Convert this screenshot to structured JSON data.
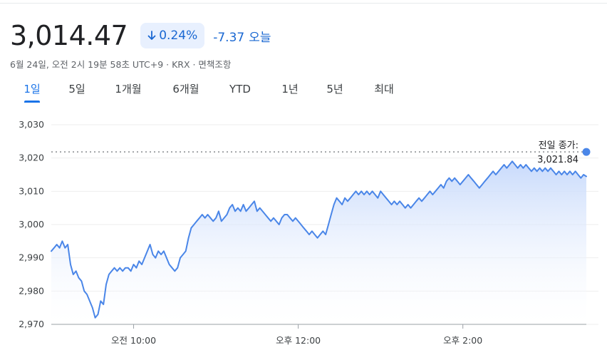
{
  "header": {
    "price": "3,014.47",
    "change_pct": "0.24%",
    "change_abs": "-7.37",
    "period_label": "오늘",
    "meta": "6월 24일, 오전 2시 19분 58초 UTC+9 · KRX · 면책조항"
  },
  "tabs": [
    {
      "label": "1일",
      "active": true
    },
    {
      "label": "5일",
      "active": false
    },
    {
      "label": "1개월",
      "active": false
    },
    {
      "label": "6개월",
      "active": false
    },
    {
      "label": "YTD",
      "active": false
    },
    {
      "label": "1년",
      "active": false
    },
    {
      "label": "5년",
      "active": false
    },
    {
      "label": "최대",
      "active": false
    }
  ],
  "colors": {
    "line": "#4a86e8",
    "fill_top": "#c5d8fb",
    "accent": "#1a73e8",
    "down": "#1967d2"
  },
  "icons": {
    "change_direction": "arrow-down-icon"
  },
  "chart_data": {
    "type": "area",
    "ylim": [
      2970,
      3030
    ],
    "y_ticks": [
      2970,
      2980,
      2990,
      3000,
      3010,
      3020,
      3030
    ],
    "y_tick_labels": [
      "2,970",
      "2,980",
      "2,990",
      "3,000",
      "3,010",
      "3,020",
      "3,030"
    ],
    "x_range": [
      "09:00",
      "15:30"
    ],
    "x_ticks": [
      {
        "time": "10:00",
        "label": "오전 10:00"
      },
      {
        "time": "12:00",
        "label": "오후 12:00"
      },
      {
        "time": "14:00",
        "label": "오후 2:00"
      }
    ],
    "previous_close": {
      "value": 3021.84,
      "label": "전일 종가:",
      "value_label": "3,021.84"
    },
    "series": [
      {
        "points": [
          [
            "09:00",
            2992
          ],
          [
            "09:02",
            2993
          ],
          [
            "09:04",
            2994
          ],
          [
            "09:06",
            2993
          ],
          [
            "09:08",
            2995
          ],
          [
            "09:10",
            2993
          ],
          [
            "09:12",
            2994
          ],
          [
            "09:14",
            2988
          ],
          [
            "09:16",
            2985
          ],
          [
            "09:18",
            2986
          ],
          [
            "09:20",
            2984
          ],
          [
            "09:22",
            2983
          ],
          [
            "09:24",
            2980
          ],
          [
            "09:26",
            2979
          ],
          [
            "09:28",
            2977
          ],
          [
            "09:30",
            2975
          ],
          [
            "09:32",
            2972
          ],
          [
            "09:34",
            2973
          ],
          [
            "09:36",
            2977
          ],
          [
            "09:38",
            2976
          ],
          [
            "09:40",
            2982
          ],
          [
            "09:42",
            2985
          ],
          [
            "09:44",
            2986
          ],
          [
            "09:46",
            2987
          ],
          [
            "09:48",
            2986
          ],
          [
            "09:50",
            2987
          ],
          [
            "09:52",
            2986
          ],
          [
            "09:54",
            2987
          ],
          [
            "09:56",
            2987
          ],
          [
            "09:58",
            2986
          ],
          [
            "10:00",
            2988
          ],
          [
            "10:02",
            2987
          ],
          [
            "10:04",
            2989
          ],
          [
            "10:06",
            2988
          ],
          [
            "10:08",
            2990
          ],
          [
            "10:10",
            2992
          ],
          [
            "10:12",
            2994
          ],
          [
            "10:14",
            2991
          ],
          [
            "10:16",
            2990
          ],
          [
            "10:18",
            2992
          ],
          [
            "10:20",
            2991
          ],
          [
            "10:22",
            2992
          ],
          [
            "10:24",
            2990
          ],
          [
            "10:26",
            2988
          ],
          [
            "10:28",
            2987
          ],
          [
            "10:30",
            2986
          ],
          [
            "10:32",
            2987
          ],
          [
            "10:34",
            2990
          ],
          [
            "10:36",
            2991
          ],
          [
            "10:38",
            2992
          ],
          [
            "10:40",
            2996
          ],
          [
            "10:42",
            2999
          ],
          [
            "10:44",
            3000
          ],
          [
            "10:46",
            3001
          ],
          [
            "10:48",
            3002
          ],
          [
            "10:50",
            3003
          ],
          [
            "10:52",
            3002
          ],
          [
            "10:54",
            3003
          ],
          [
            "10:56",
            3002
          ],
          [
            "10:58",
            3001
          ],
          [
            "11:00",
            3002
          ],
          [
            "11:02",
            3004
          ],
          [
            "11:04",
            3001
          ],
          [
            "11:06",
            3002
          ],
          [
            "11:08",
            3003
          ],
          [
            "11:10",
            3005
          ],
          [
            "11:12",
            3006
          ],
          [
            "11:14",
            3004
          ],
          [
            "11:16",
            3005
          ],
          [
            "11:18",
            3004
          ],
          [
            "11:20",
            3006
          ],
          [
            "11:22",
            3004
          ],
          [
            "11:24",
            3005
          ],
          [
            "11:26",
            3006
          ],
          [
            "11:28",
            3007
          ],
          [
            "11:30",
            3004
          ],
          [
            "11:32",
            3005
          ],
          [
            "11:34",
            3004
          ],
          [
            "11:36",
            3003
          ],
          [
            "11:38",
            3002
          ],
          [
            "11:40",
            3001
          ],
          [
            "11:42",
            3002
          ],
          [
            "11:44",
            3001
          ],
          [
            "11:46",
            3000
          ],
          [
            "11:48",
            3002
          ],
          [
            "11:50",
            3003
          ],
          [
            "11:52",
            3003
          ],
          [
            "11:54",
            3002
          ],
          [
            "11:56",
            3001
          ],
          [
            "11:58",
            3002
          ],
          [
            "12:00",
            3001
          ],
          [
            "12:02",
            3000
          ],
          [
            "12:04",
            2999
          ],
          [
            "12:06",
            2998
          ],
          [
            "12:08",
            2997
          ],
          [
            "12:10",
            2998
          ],
          [
            "12:12",
            2997
          ],
          [
            "12:14",
            2996
          ],
          [
            "12:16",
            2997
          ],
          [
            "12:18",
            2998
          ],
          [
            "12:20",
            2997
          ],
          [
            "12:22",
            3000
          ],
          [
            "12:24",
            3003
          ],
          [
            "12:26",
            3006
          ],
          [
            "12:28",
            3008
          ],
          [
            "12:30",
            3007
          ],
          [
            "12:32",
            3006
          ],
          [
            "12:34",
            3008
          ],
          [
            "12:36",
            3007
          ],
          [
            "12:38",
            3008
          ],
          [
            "12:40",
            3009
          ],
          [
            "12:42",
            3010
          ],
          [
            "12:44",
            3009
          ],
          [
            "12:46",
            3010
          ],
          [
            "12:48",
            3009
          ],
          [
            "12:50",
            3010
          ],
          [
            "12:52",
            3009
          ],
          [
            "12:54",
            3010
          ],
          [
            "12:56",
            3009
          ],
          [
            "12:58",
            3008
          ],
          [
            "13:00",
            3010
          ],
          [
            "13:02",
            3009
          ],
          [
            "13:04",
            3008
          ],
          [
            "13:06",
            3007
          ],
          [
            "13:08",
            3006
          ],
          [
            "13:10",
            3007
          ],
          [
            "13:12",
            3006
          ],
          [
            "13:14",
            3007
          ],
          [
            "13:16",
            3006
          ],
          [
            "13:18",
            3005
          ],
          [
            "13:20",
            3006
          ],
          [
            "13:22",
            3005
          ],
          [
            "13:24",
            3006
          ],
          [
            "13:26",
            3007
          ],
          [
            "13:28",
            3008
          ],
          [
            "13:30",
            3007
          ],
          [
            "13:32",
            3008
          ],
          [
            "13:34",
            3009
          ],
          [
            "13:36",
            3010
          ],
          [
            "13:38",
            3009
          ],
          [
            "13:40",
            3010
          ],
          [
            "13:42",
            3011
          ],
          [
            "13:44",
            3012
          ],
          [
            "13:46",
            3011
          ],
          [
            "13:48",
            3013
          ],
          [
            "13:50",
            3014
          ],
          [
            "13:52",
            3013
          ],
          [
            "13:54",
            3014
          ],
          [
            "13:56",
            3013
          ],
          [
            "13:58",
            3012
          ],
          [
            "14:00",
            3013
          ],
          [
            "14:02",
            3014
          ],
          [
            "14:04",
            3015
          ],
          [
            "14:06",
            3014
          ],
          [
            "14:08",
            3013
          ],
          [
            "14:10",
            3012
          ],
          [
            "14:12",
            3011
          ],
          [
            "14:14",
            3012
          ],
          [
            "14:16",
            3013
          ],
          [
            "14:18",
            3014
          ],
          [
            "14:20",
            3015
          ],
          [
            "14:22",
            3016
          ],
          [
            "14:24",
            3015
          ],
          [
            "14:26",
            3016
          ],
          [
            "14:28",
            3017
          ],
          [
            "14:30",
            3018
          ],
          [
            "14:32",
            3017
          ],
          [
            "14:34",
            3018
          ],
          [
            "14:36",
            3019
          ],
          [
            "14:38",
            3018
          ],
          [
            "14:40",
            3017
          ],
          [
            "14:42",
            3018
          ],
          [
            "14:44",
            3017
          ],
          [
            "14:46",
            3018
          ],
          [
            "14:48",
            3017
          ],
          [
            "14:50",
            3016
          ],
          [
            "14:52",
            3017
          ],
          [
            "14:54",
            3016
          ],
          [
            "14:56",
            3017
          ],
          [
            "14:58",
            3016
          ],
          [
            "15:00",
            3017
          ],
          [
            "15:02",
            3016
          ],
          [
            "15:04",
            3017
          ],
          [
            "15:06",
            3016
          ],
          [
            "15:08",
            3015
          ],
          [
            "15:10",
            3016
          ],
          [
            "15:12",
            3015
          ],
          [
            "15:14",
            3016
          ],
          [
            "15:16",
            3015
          ],
          [
            "15:18",
            3016
          ],
          [
            "15:20",
            3015
          ],
          [
            "15:22",
            3016
          ],
          [
            "15:24",
            3015
          ],
          [
            "15:26",
            3014
          ],
          [
            "15:28",
            3015
          ],
          [
            "15:30",
            3014.47
          ]
        ]
      }
    ]
  }
}
